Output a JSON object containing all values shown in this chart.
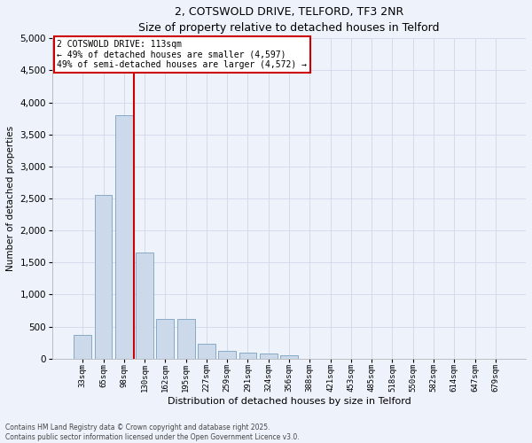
{
  "title_line1": "2, COTSWOLD DRIVE, TELFORD, TF3 2NR",
  "title_line2": "Size of property relative to detached houses in Telford",
  "xlabel": "Distribution of detached houses by size in Telford",
  "ylabel": "Number of detached properties",
  "categories": [
    "33sqm",
    "65sqm",
    "98sqm",
    "130sqm",
    "162sqm",
    "195sqm",
    "227sqm",
    "259sqm",
    "291sqm",
    "324sqm",
    "356sqm",
    "388sqm",
    "421sqm",
    "453sqm",
    "485sqm",
    "518sqm",
    "550sqm",
    "582sqm",
    "614sqm",
    "647sqm",
    "679sqm"
  ],
  "bar_values": [
    370,
    2550,
    3800,
    1650,
    620,
    620,
    230,
    120,
    90,
    80,
    50,
    0,
    0,
    0,
    0,
    0,
    0,
    0,
    0,
    0,
    0
  ],
  "bar_color": "#ccd9ea",
  "bar_edge_color": "#7aa0c0",
  "vline_color": "#cc0000",
  "vline_label_title": "2 COTSWOLD DRIVE: 113sqm",
  "vline_label_line2": "← 49% of detached houses are smaller (4,597)",
  "vline_label_line3": "49% of semi-detached houses are larger (4,572) →",
  "annotation_box_edgecolor": "#cc0000",
  "annotation_box_fill": "white",
  "ylim_max": 5000,
  "ytick_step": 500,
  "grid_color": "#d0d8e8",
  "bg_color": "#eef2fb",
  "footnote1": "Contains HM Land Registry data © Crown copyright and database right 2025.",
  "footnote2": "Contains public sector information licensed under the Open Government Licence v3.0."
}
